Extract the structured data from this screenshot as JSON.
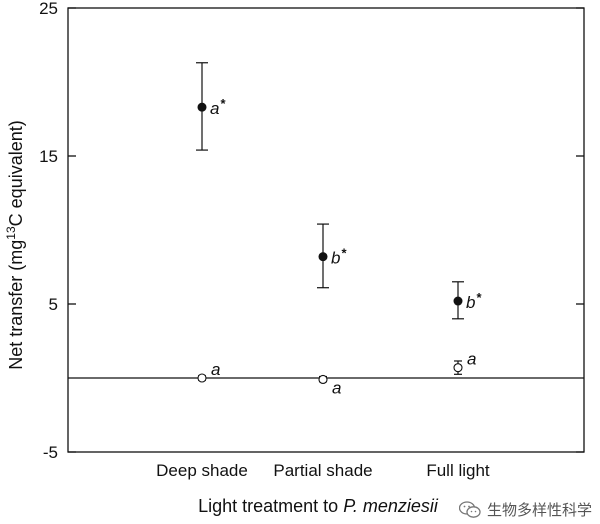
{
  "chart_data": {
    "type": "scatter",
    "ylabel_main": "Net transfer (mg",
    "ylabel_sup": "13",
    "ylabel_rest": "C equivalent)",
    "xlabel_main": "Light treatment to ",
    "xlabel_species": "P. menziesii",
    "categories": [
      "Deep shade",
      "Partial shade",
      "Full light"
    ],
    "ylim": [
      -5,
      25
    ],
    "yticks": [
      -5,
      5,
      15,
      25
    ],
    "reference_line": 0,
    "series": [
      {
        "marker": "filled-circle",
        "values": [
          18.3,
          8.2,
          5.2
        ],
        "err_low": [
          15.4,
          6.1,
          4.0
        ],
        "err_high": [
          21.3,
          10.4,
          6.5
        ],
        "labels": [
          "a",
          "b",
          "b"
        ],
        "star": "*"
      },
      {
        "marker": "open-circle",
        "values": [
          0.0,
          -0.1,
          0.7
        ],
        "err_low": [
          -0.15,
          -0.25,
          0.25
        ],
        "err_high": [
          0.15,
          0.1,
          1.15
        ],
        "labels": [
          "a",
          "a",
          "a"
        ]
      }
    ]
  },
  "watermark": {
    "text": "生物多样性科学",
    "icon": "wechat-icon"
  }
}
